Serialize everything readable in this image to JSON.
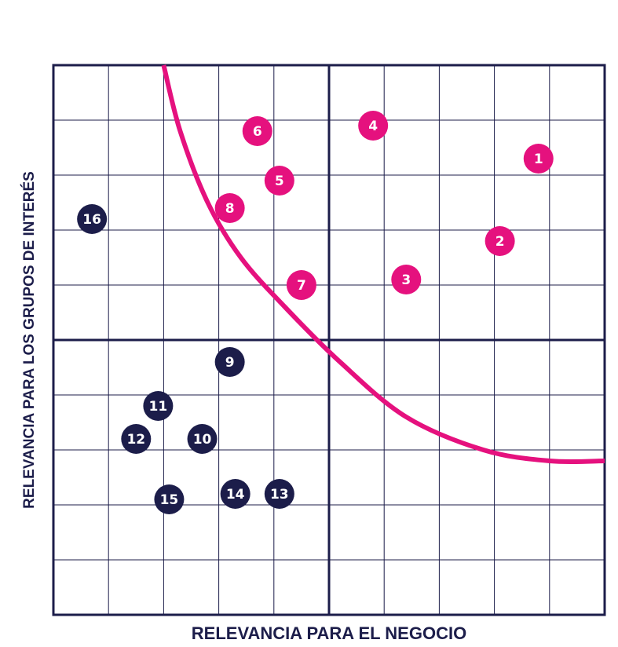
{
  "chart_data": {
    "type": "scatter",
    "title": "",
    "xlabel": "RELEVANCIA PARA EL NEGOCIO",
    "ylabel": "RELEVANCIA PARA LOS GRUPOS DE INTERÉS",
    "xlim": [
      0,
      10
    ],
    "ylim": [
      0,
      10
    ],
    "grid": true,
    "quadrant_split": {
      "x": 5,
      "y": 5
    },
    "threshold_curve": [
      [
        2,
        10
      ],
      [
        2.3,
        8.8
      ],
      [
        2.8,
        7.5
      ],
      [
        3.4,
        6.5
      ],
      [
        4.2,
        5.6
      ],
      [
        5.2,
        4.6
      ],
      [
        6.4,
        3.6
      ],
      [
        7.8,
        3.0
      ],
      [
        9.0,
        2.8
      ],
      [
        10,
        2.8
      ]
    ],
    "colors": {
      "material": "#e5117e",
      "non_material": "#1c1d4a",
      "curve": "#e5117e",
      "grid": "#1c1d4a"
    },
    "series": [
      {
        "name": "",
        "color": "#e5117e",
        "points": [
          {
            "label": "1",
            "x": 8.8,
            "y": 8.3
          },
          {
            "label": "2",
            "x": 8.1,
            "y": 6.8
          },
          {
            "label": "3",
            "x": 6.4,
            "y": 6.1
          },
          {
            "label": "4",
            "x": 5.8,
            "y": 8.9
          },
          {
            "label": "5",
            "x": 4.1,
            "y": 7.9
          },
          {
            "label": "6",
            "x": 3.7,
            "y": 8.8
          },
          {
            "label": "7",
            "x": 4.5,
            "y": 6.0
          },
          {
            "label": "8",
            "x": 3.2,
            "y": 7.4
          }
        ]
      },
      {
        "name": "",
        "color": "#1c1d4a",
        "points": [
          {
            "label": "9",
            "x": 3.2,
            "y": 4.6
          },
          {
            "label": "10",
            "x": 2.7,
            "y": 3.2
          },
          {
            "label": "11",
            "x": 1.9,
            "y": 3.8
          },
          {
            "label": "12",
            "x": 1.5,
            "y": 3.2
          },
          {
            "label": "13",
            "x": 4.1,
            "y": 2.2
          },
          {
            "label": "14",
            "x": 3.3,
            "y": 2.2
          },
          {
            "label": "15",
            "x": 2.1,
            "y": 2.1
          },
          {
            "label": "16",
            "x": 0.7,
            "y": 7.2
          }
        ]
      }
    ]
  }
}
